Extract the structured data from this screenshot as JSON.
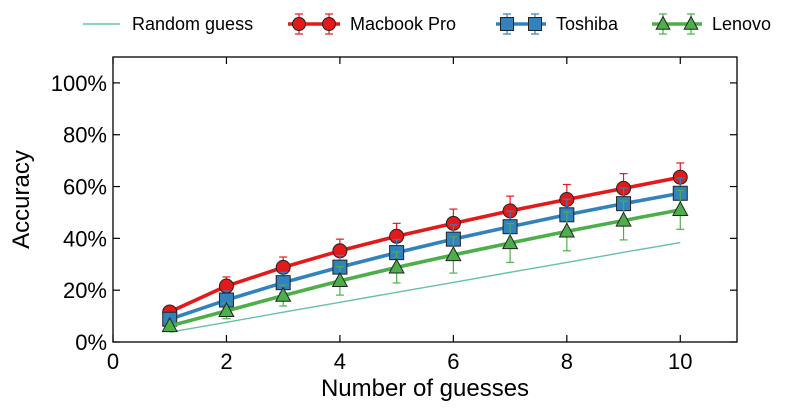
{
  "chart_data": {
    "type": "line",
    "title": "",
    "xlabel": "Number of guesses",
    "ylabel": "Accuracy",
    "xlim": [
      0,
      11
    ],
    "ylim": [
      0,
      110
    ],
    "x_ticks": [
      0,
      2,
      4,
      6,
      8,
      10
    ],
    "y_ticks": [
      0,
      20,
      40,
      60,
      80,
      100
    ],
    "x_tick_labels": [
      "0",
      "2",
      "4",
      "6",
      "8",
      "10"
    ],
    "y_tick_labels": [
      "0%",
      "20%",
      "40%",
      "60%",
      "80%",
      "100%"
    ],
    "grid": false,
    "legend_position": "top",
    "x": [
      1,
      2,
      3,
      4,
      5,
      6,
      7,
      8,
      9,
      10
    ],
    "series": [
      {
        "name": "Random guess",
        "color": "#66c2a4",
        "marker": "none",
        "values": [
          3.8,
          7.6,
          11.5,
          15.3,
          19.2,
          23.0,
          26.9,
          30.7,
          34.6,
          38.4
        ],
        "errors": null
      },
      {
        "name": "Macbook Pro",
        "color": "#e31a1c",
        "marker": "circle",
        "values": [
          11.6,
          21.6,
          28.8,
          35.2,
          40.8,
          45.8,
          50.6,
          55.0,
          59.3,
          63.6
        ],
        "errors": [
          2.0,
          3.5,
          4.0,
          4.5,
          5.0,
          5.5,
          5.7,
          5.8,
          5.7,
          5.5
        ]
      },
      {
        "name": "Toshiba",
        "color": "#3182bd",
        "marker": "square",
        "values": [
          8.8,
          16.2,
          22.9,
          28.9,
          34.5,
          39.7,
          44.5,
          49.1,
          53.4,
          57.4
        ],
        "errors": [
          2.5,
          3.5,
          4.0,
          4.5,
          5.0,
          5.5,
          6.0,
          6.0,
          6.0,
          5.8
        ]
      },
      {
        "name": "Lenovo",
        "color": "#4daf4a",
        "marker": "triangle",
        "values": [
          6.2,
          12.0,
          17.9,
          23.6,
          28.8,
          33.6,
          38.2,
          42.7,
          46.9,
          51.0
        ],
        "errors": [
          1.5,
          3.0,
          4.0,
          5.5,
          6.0,
          7.0,
          7.5,
          7.5,
          7.5,
          7.5
        ]
      }
    ]
  }
}
